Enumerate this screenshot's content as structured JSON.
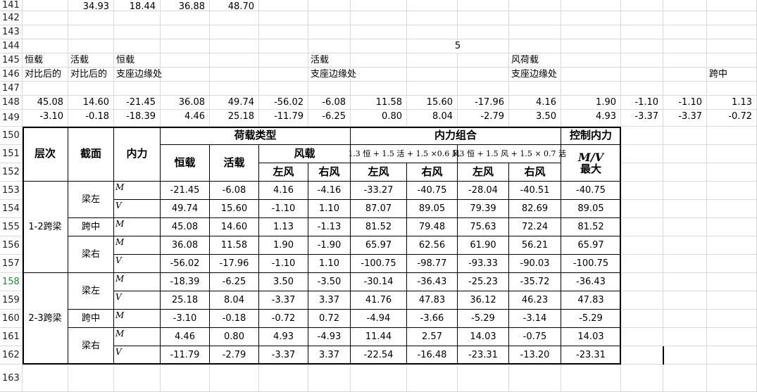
{
  "rows": [
    {
      "n": "141",
      "y": 0,
      "h": 16
    },
    {
      "n": "142",
      "y": 16,
      "h": 20
    },
    {
      "n": "143",
      "y": 36,
      "h": 20
    },
    {
      "n": "144",
      "y": 56,
      "h": 20
    },
    {
      "n": "145",
      "y": 76,
      "h": 20
    },
    {
      "n": "146",
      "y": 96,
      "h": 20
    },
    {
      "n": "147",
      "y": 116,
      "h": 20
    },
    {
      "n": "148",
      "y": 136,
      "h": 20
    },
    {
      "n": "149",
      "y": 156,
      "h": 24
    },
    {
      "n": "150",
      "y": 180,
      "h": 26
    },
    {
      "n": "151",
      "y": 206,
      "h": 26
    },
    {
      "n": "152",
      "y": 232,
      "h": 26
    },
    {
      "n": "153",
      "y": 258,
      "h": 26
    },
    {
      "n": "154",
      "y": 284,
      "h": 26
    },
    {
      "n": "155",
      "y": 310,
      "h": 26
    },
    {
      "n": "156",
      "y": 336,
      "h": 26
    },
    {
      "n": "157",
      "y": 362,
      "h": 26
    },
    {
      "n": "158",
      "y": 388,
      "h": 26,
      "sel": true
    },
    {
      "n": "159",
      "y": 414,
      "h": 26
    },
    {
      "n": "160",
      "y": 440,
      "h": 26
    },
    {
      "n": "161",
      "y": 466,
      "h": 26
    },
    {
      "n": "162",
      "y": 492,
      "h": 26
    },
    {
      "n": "163",
      "y": 518,
      "h": 39
    }
  ],
  "cols": [
    32,
    97,
    162,
    228,
    298,
    368,
    438,
    498,
    578,
    650,
    723,
    797,
    882,
    942,
    1004,
    1075
  ],
  "texts": [
    {
      "r": 0,
      "c": 1,
      "t": "34.93",
      "cls": "num"
    },
    {
      "r": 0,
      "c": 2,
      "t": "18.44",
      "cls": "num"
    },
    {
      "r": 0,
      "c": 3,
      "t": "36.88",
      "cls": "num"
    },
    {
      "r": 0,
      "c": 4,
      "t": "48.70",
      "cls": "num"
    },
    {
      "r": 3,
      "c": 8,
      "t": "5",
      "cls": "tc",
      "cs": 2
    },
    {
      "r": 4,
      "c": 0,
      "t": "恒载",
      "cls": "txt"
    },
    {
      "r": 4,
      "c": 1,
      "t": "活载",
      "cls": "txt"
    },
    {
      "r": 4,
      "c": 2,
      "t": "恒载",
      "cls": "txt"
    },
    {
      "r": 4,
      "c": 6,
      "t": "活载",
      "cls": "txt"
    },
    {
      "r": 4,
      "c": 10,
      "t": "风荷载",
      "cls": "txt"
    },
    {
      "r": 5,
      "c": 0,
      "t": "对比后的",
      "cls": "txt"
    },
    {
      "r": 5,
      "c": 1,
      "t": "对比后的",
      "cls": "txt"
    },
    {
      "r": 5,
      "c": 2,
      "t": "支座边缘处",
      "cls": "txt"
    },
    {
      "r": 5,
      "c": 6,
      "t": "支座边缘处",
      "cls": "txt"
    },
    {
      "r": 5,
      "c": 10,
      "t": "支座边缘处",
      "cls": "txt"
    },
    {
      "r": 5,
      "c": 14,
      "t": "跨中",
      "cls": "txt"
    },
    {
      "r": 7,
      "c": 0,
      "t": "45.08",
      "cls": "num"
    },
    {
      "r": 7,
      "c": 1,
      "t": "14.60",
      "cls": "num"
    },
    {
      "r": 7,
      "c": 2,
      "t": "-21.45",
      "cls": "num"
    },
    {
      "r": 7,
      "c": 3,
      "t": "36.08",
      "cls": "num"
    },
    {
      "r": 7,
      "c": 4,
      "t": "49.74",
      "cls": "num"
    },
    {
      "r": 7,
      "c": 5,
      "t": "-56.02",
      "cls": "num"
    },
    {
      "r": 7,
      "c": 6,
      "t": "-6.08",
      "cls": "num"
    },
    {
      "r": 7,
      "c": 7,
      "t": "11.58",
      "cls": "num"
    },
    {
      "r": 7,
      "c": 8,
      "t": "15.60",
      "cls": "num"
    },
    {
      "r": 7,
      "c": 9,
      "t": "-17.96",
      "cls": "num"
    },
    {
      "r": 7,
      "c": 10,
      "t": "4.16",
      "cls": "num"
    },
    {
      "r": 7,
      "c": 11,
      "t": "1.90",
      "cls": "num"
    },
    {
      "r": 7,
      "c": 12,
      "t": "-1.10",
      "cls": "num"
    },
    {
      "r": 7,
      "c": 13,
      "t": "-1.10",
      "cls": "num"
    },
    {
      "r": 7,
      "c": 14,
      "t": "1.13",
      "cls": "num"
    },
    {
      "r": 8,
      "c": 0,
      "t": "-3.10",
      "cls": "num"
    },
    {
      "r": 8,
      "c": 1,
      "t": "-0.18",
      "cls": "num"
    },
    {
      "r": 8,
      "c": 2,
      "t": "-18.39",
      "cls": "num"
    },
    {
      "r": 8,
      "c": 3,
      "t": "4.46",
      "cls": "num"
    },
    {
      "r": 8,
      "c": 4,
      "t": "25.18",
      "cls": "num"
    },
    {
      "r": 8,
      "c": 5,
      "t": "-11.79",
      "cls": "num"
    },
    {
      "r": 8,
      "c": 6,
      "t": "-6.25",
      "cls": "num"
    },
    {
      "r": 8,
      "c": 7,
      "t": "0.80",
      "cls": "num"
    },
    {
      "r": 8,
      "c": 8,
      "t": "8.04",
      "cls": "num"
    },
    {
      "r": 8,
      "c": 9,
      "t": "-2.79",
      "cls": "num"
    },
    {
      "r": 8,
      "c": 10,
      "t": "3.50",
      "cls": "num"
    },
    {
      "r": 8,
      "c": 11,
      "t": "4.93",
      "cls": "num"
    },
    {
      "r": 8,
      "c": 12,
      "t": "-3.37",
      "cls": "num"
    },
    {
      "r": 8,
      "c": 13,
      "t": "-3.37",
      "cls": "num"
    },
    {
      "r": 8,
      "c": 14,
      "t": "-0.72",
      "cls": "num"
    }
  ],
  "table": {
    "headers": [
      {
        "r": 9,
        "c": 0,
        "rs": 3,
        "t": "层次",
        "cls": "tc hdr"
      },
      {
        "r": 9,
        "c": 1,
        "rs": 3,
        "t": "截面",
        "cls": "tc hdr"
      },
      {
        "r": 9,
        "c": 2,
        "rs": 3,
        "t": "内力",
        "cls": "tc hdr"
      },
      {
        "r": 9,
        "c": 3,
        "cs": 4,
        "t": "荷载类型",
        "cls": "tc hdr"
      },
      {
        "r": 9,
        "c": 7,
        "cs": 4,
        "t": "内力组合",
        "cls": "tc hdr"
      },
      {
        "r": 9,
        "c": 11,
        "t": "控制内力",
        "cls": "tc hdr"
      },
      {
        "r": 10,
        "c": 3,
        "rs": 2,
        "t": "恒载",
        "cls": "tc hdr"
      },
      {
        "r": 10,
        "c": 4,
        "rs": 2,
        "t": "活载",
        "cls": "tc hdr"
      },
      {
        "r": 10,
        "c": 5,
        "cs": 2,
        "t": "风载",
        "cls": "tc hdr"
      },
      {
        "r": 10,
        "c": 7,
        "cs": 2,
        "t": "1.3 恒 + 1.5 活 + 1.5 ×0.6 风",
        "cls": "tc frm"
      },
      {
        "r": 10,
        "c": 9,
        "cs": 2,
        "t": "1.3 恒 + 1.5 风 + 1.5 × 0.7 活",
        "cls": "tc frm"
      },
      {
        "r": 10,
        "c": 11,
        "rs": 2,
        "t": "M/V 最大",
        "cls": "tc hdr"
      },
      {
        "r": 11,
        "c": 5,
        "t": "左风",
        "cls": "tc hdr"
      },
      {
        "r": 11,
        "c": 6,
        "t": "右风",
        "cls": "tc hdr"
      },
      {
        "r": 11,
        "c": 7,
        "t": "左风",
        "cls": "tc hdr"
      },
      {
        "r": 11,
        "c": 8,
        "t": "右风",
        "cls": "tc hdr"
      },
      {
        "r": 11,
        "c": 9,
        "t": "左风",
        "cls": "tc hdr"
      },
      {
        "r": 11,
        "c": 10,
        "t": "右风",
        "cls": "tc hdr"
      }
    ],
    "labels": [
      {
        "r": 12,
        "c": 0,
        "rs": 5,
        "t": "1-2跨梁"
      },
      {
        "r": 17,
        "c": 0,
        "rs": 5,
        "t": "2-3跨梁"
      },
      {
        "r": 12,
        "c": 1,
        "rs": 2,
        "t": "梁左"
      },
      {
        "r": 14,
        "c": 1,
        "t": "跨中"
      },
      {
        "r": 15,
        "c": 1,
        "rs": 2,
        "t": "梁右"
      },
      {
        "r": 17,
        "c": 1,
        "rs": 2,
        "t": "梁左"
      },
      {
        "r": 19,
        "c": 1,
        "t": "跨中"
      },
      {
        "r": 20,
        "c": 1,
        "rs": 2,
        "t": "梁右"
      }
    ],
    "force": [
      "M",
      "V",
      "M",
      "M",
      "V",
      "M",
      "V",
      "M",
      "M",
      "V"
    ],
    "data": [
      [
        "-21.45",
        "-6.08",
        "4.16",
        "-4.16",
        "-33.27",
        "-40.75",
        "-28.04",
        "-40.51",
        "-40.75"
      ],
      [
        "49.74",
        "15.60",
        "-1.10",
        "1.10",
        "87.07",
        "89.05",
        "79.39",
        "82.69",
        "89.05"
      ],
      [
        "45.08",
        "14.60",
        "1.13",
        "-1.13",
        "81.52",
        "79.48",
        "75.63",
        "72.24",
        "81.52"
      ],
      [
        "36.08",
        "11.58",
        "1.90",
        "-1.90",
        "65.97",
        "62.56",
        "61.90",
        "56.21",
        "65.97"
      ],
      [
        "-56.02",
        "-17.96",
        "-1.10",
        "1.10",
        "-100.75",
        "-98.77",
        "-93.33",
        "-90.03",
        "-100.75"
      ],
      [
        "-18.39",
        "-6.25",
        "3.50",
        "-3.50",
        "-30.14",
        "-36.43",
        "-25.23",
        "-35.72",
        "-36.43"
      ],
      [
        "25.18",
        "8.04",
        "-3.37",
        "3.37",
        "41.76",
        "47.83",
        "36.12",
        "46.23",
        "47.83"
      ],
      [
        "-3.10",
        "-0.18",
        "-0.72",
        "0.72",
        "-4.94",
        "-3.66",
        "-5.29",
        "-3.14",
        "-5.29"
      ],
      [
        "4.46",
        "0.80",
        "4.93",
        "-4.93",
        "11.44",
        "2.57",
        "14.03",
        "-0.75",
        "14.03"
      ],
      [
        "-11.79",
        "-2.79",
        "-3.37",
        "3.37",
        "-22.54",
        "-16.48",
        "-23.31",
        "-13.20",
        "-23.31"
      ]
    ]
  }
}
